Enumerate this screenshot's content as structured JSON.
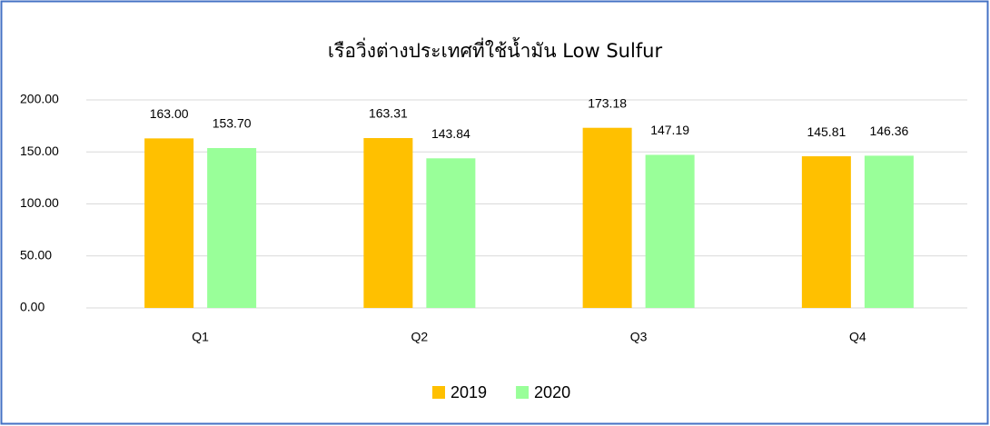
{
  "chart_data": {
    "type": "bar",
    "title": "เรือวิ่งต่างประเทศที่ใช้น้ำมัน Low Sulfur",
    "categories": [
      "Q1",
      "Q2",
      "Q3",
      "Q4"
    ],
    "series": [
      {
        "name": "2019",
        "color": "#ffc000",
        "values": [
          163.0,
          163.31,
          173.18,
          145.81
        ],
        "value_labels": [
          "163.00",
          "163.31",
          "173.18",
          "145.81"
        ]
      },
      {
        "name": "2020",
        "color": "#99ff99",
        "values": [
          153.7,
          143.84,
          147.19,
          146.36
        ],
        "value_labels": [
          "153.70",
          "143.84",
          "147.19",
          "146.36"
        ]
      }
    ],
    "ylim": [
      0,
      200
    ],
    "yticks": [
      {
        "value": 0,
        "label": "0.00"
      },
      {
        "value": 50,
        "label": "50.00"
      },
      {
        "value": 100,
        "label": "100.00"
      },
      {
        "value": 150,
        "label": "150.00"
      },
      {
        "value": 200,
        "label": "200.00"
      }
    ],
    "grid": true,
    "legend": "bottom"
  }
}
